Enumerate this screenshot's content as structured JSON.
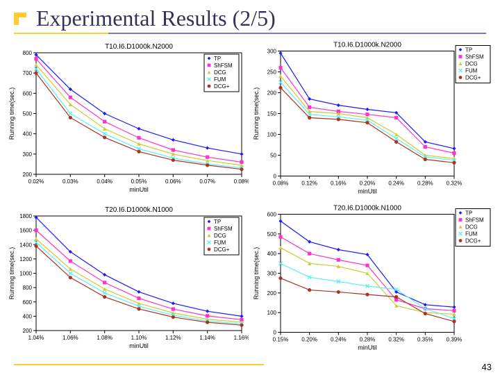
{
  "title": "Experimental Results (2/5)",
  "page_number": "43",
  "colors": {
    "title_text": "#333355",
    "accent": "#ffcc33",
    "rule_right": "#7a7ac8",
    "background": "#ffffff"
  },
  "series_meta": [
    {
      "name": "TP",
      "color": "#1a1aff",
      "marker": "diamond"
    },
    {
      "name": "ShFSM",
      "color": "#ff33cc",
      "marker": "square"
    },
    {
      "name": "DCG",
      "color": "#cccc33",
      "marker": "triangle"
    },
    {
      "name": "FUM",
      "color": "#5fefef",
      "marker": "cross"
    },
    {
      "name": "DCG+",
      "color": "#aa3322",
      "marker": "circle"
    }
  ],
  "charts": {
    "a": {
      "type": "line",
      "title": "T10.I6.D1000k.N2000",
      "xlabel": "minUtil",
      "ylabel": "Running time(sec.)",
      "xlim": [
        "0.02%",
        "0.08%"
      ],
      "ylim": [
        200,
        800
      ],
      "xticks": [
        "0.02%",
        "0.03%",
        "0.04%",
        "0.05%",
        "0.06%",
        "0.07%",
        "0.08%"
      ],
      "yticks": [
        200,
        300,
        400,
        500,
        600,
        700,
        800
      ],
      "title_fontsize": 10,
      "label_fontsize": 9,
      "tick_fontsize": 8,
      "grid_color": "#cccccc",
      "background_color": "#ffffff",
      "line_width": 1.2,
      "marker_size": 4,
      "legend_position": "top-right",
      "series": {
        "TP": [
          790,
          620,
          500,
          425,
          370,
          330,
          300
        ],
        "ShFSM": [
          770,
          580,
          460,
          380,
          320,
          285,
          260
        ],
        "DCG": [
          740,
          545,
          425,
          350,
          300,
          268,
          245
        ],
        "FUM": [
          720,
          500,
          400,
          326,
          280,
          251,
          232
        ],
        "DCG+": [
          700,
          480,
          382,
          312,
          270,
          245,
          225
        ]
      }
    },
    "b": {
      "type": "line",
      "title": "T10.I6.D1000k.N2000",
      "xlabel": "minUtil",
      "ylabel": "Running time(sec.)",
      "xlim": [
        "0.08%",
        "0.32%"
      ],
      "ylim": [
        0,
        300
      ],
      "xticks": [
        "0.08%",
        "0.12%",
        "0.16%",
        "0.20%",
        "0.24%",
        "0.28%",
        "0.32%"
      ],
      "yticks": [
        0,
        50,
        100,
        150,
        200,
        250,
        300
      ],
      "title_fontsize": 10,
      "label_fontsize": 9,
      "tick_fontsize": 8,
      "grid_color": "#cccccc",
      "background_color": "#ffffff",
      "line_width": 1.2,
      "marker_size": 4,
      "legend_position": "top-right-outside",
      "series": {
        "TP": [
          295,
          185,
          170,
          160,
          152,
          82,
          66
        ],
        "ShFSM": [
          260,
          165,
          155,
          148,
          140,
          70,
          55
        ],
        "DCG": [
          240,
          155,
          150,
          140,
          100,
          50,
          42
        ],
        "FUM": [
          225,
          148,
          142,
          134,
          90,
          46,
          38
        ],
        "DCG+": [
          212,
          140,
          136,
          128,
          82,
          40,
          32
        ]
      }
    },
    "c": {
      "type": "line",
      "title": "T20.I6.D1000k.N1000",
      "xlabel": "minUtil",
      "ylabel": "Running time(sec.)",
      "xlim": [
        "1.04%",
        "1.16%"
      ],
      "ylim": [
        200,
        1800
      ],
      "xticks": [
        "1.04%",
        "1.06%",
        "1.08%",
        "1.10%",
        "1.12%",
        "1.14%",
        "1.16%"
      ],
      "yticks": [
        200,
        400,
        600,
        800,
        1000,
        1200,
        1400,
        1600,
        1800
      ],
      "title_fontsize": 10,
      "label_fontsize": 9,
      "tick_fontsize": 8,
      "grid_color": "#cccccc",
      "background_color": "#ffffff",
      "line_width": 1.2,
      "marker_size": 4,
      "legend_position": "top-right",
      "series": {
        "TP": [
          1780,
          1300,
          980,
          740,
          580,
          470,
          400
        ],
        "ShFSM": [
          1600,
          1170,
          870,
          650,
          500,
          405,
          352
        ],
        "DCG": [
          1480,
          1060,
          780,
          580,
          446,
          360,
          316
        ],
        "FUM": [
          1430,
          1000,
          725,
          540,
          414,
          334,
          294
        ],
        "DCG+": [
          1380,
          940,
          670,
          502,
          388,
          315,
          276
        ]
      }
    },
    "d": {
      "type": "line",
      "title": "T20.I6.D1000k.N1000",
      "xlabel": "minUtil",
      "ylabel": "Running time(sec.)",
      "xlim": [
        "0.15%",
        "0.39%"
      ],
      "ylim": [
        0,
        600
      ],
      "xticks": [
        "0.15%",
        "0.20%",
        "0.24%",
        "0.28%",
        "0.32%",
        "0.35%",
        "0.39%"
      ],
      "yticks": [
        0,
        100,
        200,
        300,
        400,
        500,
        600
      ],
      "title_fontsize": 10,
      "label_fontsize": 9,
      "tick_fontsize": 8,
      "grid_color": "#cccccc",
      "background_color": "#ffffff",
      "line_width": 1.2,
      "marker_size": 4,
      "legend_position": "top-right-outside",
      "series": {
        "TP": [
          565,
          460,
          420,
          395,
          205,
          140,
          128
        ],
        "ShFSM": [
          485,
          400,
          368,
          340,
          165,
          120,
          110
        ],
        "DCG": [
          430,
          350,
          335,
          300,
          135,
          100,
          92
        ],
        "FUM": [
          350,
          280,
          258,
          235,
          218,
          120,
          70
        ],
        "DCG+": [
          275,
          215,
          205,
          192,
          180,
          95,
          55
        ]
      }
    }
  }
}
